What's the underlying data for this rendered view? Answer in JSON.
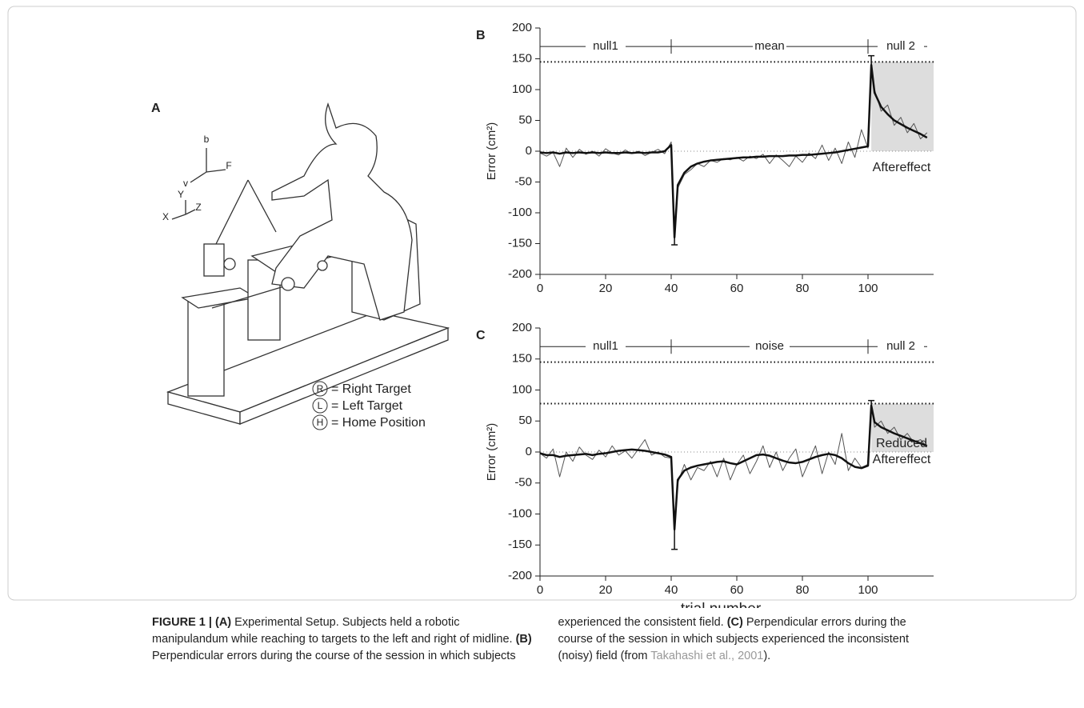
{
  "chart_data": [
    {
      "type": "line",
      "panel": "B",
      "ylabel": "Error (cm²)",
      "xlim": [
        0,
        120
      ],
      "xticks": [
        0,
        20,
        40,
        60,
        80,
        100
      ],
      "ylim": [
        -200,
        200
      ],
      "yticks": [
        -200,
        -150,
        -100,
        -50,
        0,
        50,
        100,
        150,
        200
      ],
      "x": [
        0,
        2,
        4,
        6,
        8,
        10,
        12,
        14,
        16,
        18,
        20,
        22,
        24,
        26,
        28,
        30,
        32,
        34,
        36,
        38,
        40,
        41,
        42,
        44,
        46,
        48,
        50,
        52,
        54,
        56,
        58,
        60,
        62,
        64,
        66,
        68,
        70,
        72,
        74,
        76,
        78,
        80,
        82,
        84,
        86,
        88,
        90,
        92,
        94,
        96,
        98,
        100,
        101,
        102,
        104,
        106,
        108,
        110,
        112,
        114,
        116,
        118
      ],
      "series": [
        {
          "color": "#555555",
          "line_width": 1,
          "values": [
            -3,
            -8,
            -2,
            -25,
            5,
            -10,
            3,
            -5,
            0,
            -8,
            4,
            -3,
            -6,
            2,
            -4,
            0,
            -7,
            -2,
            3,
            -4,
            15,
            -145,
            -60,
            -38,
            -30,
            -20,
            -25,
            -15,
            -18,
            -12,
            -14,
            -10,
            -16,
            -8,
            -12,
            -5,
            -20,
            -6,
            -15,
            -25,
            -8,
            -18,
            -3,
            -12,
            10,
            -15,
            5,
            -20,
            15,
            -10,
            35,
            5,
            145,
            100,
            65,
            75,
            42,
            55,
            30,
            45,
            20,
            30
          ]
        },
        {
          "color": "#111111",
          "line_width": 2.5,
          "values": [
            -2,
            -3,
            -2,
            -4,
            -2,
            -3,
            -2,
            -3,
            -2,
            -3,
            -2,
            -3,
            -3,
            -2,
            -3,
            -2,
            -3,
            -2,
            -2,
            0,
            10,
            -140,
            -55,
            -35,
            -25,
            -20,
            -17,
            -15,
            -14,
            -13,
            -12,
            -11,
            -10,
            -10,
            -9,
            -9,
            -8,
            -8,
            -8,
            -7,
            -7,
            -6,
            -6,
            -5,
            -4,
            -3,
            -2,
            0,
            2,
            4,
            6,
            8,
            140,
            95,
            72,
            60,
            50,
            44,
            38,
            33,
            28,
            22
          ]
        }
      ],
      "segment_y": 170,
      "segments": [
        {
          "label": "null1",
          "from": 0,
          "to": 40
        },
        {
          "label": "mean",
          "from": 40,
          "to": 100
        },
        {
          "label": "null 2",
          "from": 100,
          "to": 120
        }
      ],
      "reference_lines": [
        {
          "y": 145,
          "style": "dotted"
        },
        {
          "y": 0,
          "style": "fine"
        }
      ],
      "shade": {
        "x": [
          101,
          120
        ],
        "y": [
          0,
          145
        ]
      },
      "error_bars": [
        {
          "x": 41,
          "y": [
            -140,
            -152
          ]
        },
        {
          "x": 101,
          "y": [
            140,
            155
          ]
        }
      ],
      "annotation": [
        "Aftereffect"
      ]
    },
    {
      "type": "line",
      "panel": "C",
      "ylabel": "Error (cm²)",
      "xlabel": "trial number",
      "xlim": [
        0,
        120
      ],
      "xticks": [
        0,
        20,
        40,
        60,
        80,
        100
      ],
      "ylim": [
        -200,
        200
      ],
      "yticks": [
        -200,
        -150,
        -100,
        -50,
        0,
        50,
        100,
        150,
        200
      ],
      "x": [
        0,
        2,
        4,
        6,
        8,
        10,
        12,
        14,
        16,
        18,
        20,
        22,
        24,
        26,
        28,
        30,
        32,
        34,
        36,
        38,
        40,
        41,
        42,
        44,
        46,
        48,
        50,
        52,
        54,
        56,
        58,
        60,
        62,
        64,
        66,
        68,
        70,
        72,
        74,
        76,
        78,
        80,
        82,
        84,
        86,
        88,
        90,
        92,
        94,
        96,
        98,
        100,
        101,
        102,
        104,
        106,
        108,
        110,
        112,
        114,
        116,
        118
      ],
      "series": [
        {
          "color": "#555555",
          "line_width": 1,
          "values": [
            -2,
            -10,
            5,
            -40,
            0,
            -15,
            8,
            -5,
            -12,
            3,
            -8,
            10,
            -5,
            2,
            -10,
            5,
            20,
            -5,
            0,
            -8,
            -10,
            -130,
            -50,
            -20,
            -45,
            -25,
            -30,
            -15,
            -40,
            -10,
            -45,
            -20,
            -5,
            -35,
            -15,
            10,
            -25,
            0,
            -30,
            -10,
            5,
            -40,
            -15,
            10,
            -35,
            0,
            -20,
            30,
            -30,
            -10,
            -25,
            -20,
            78,
            40,
            50,
            30,
            40,
            20,
            30,
            15,
            20,
            8
          ]
        },
        {
          "color": "#111111",
          "line_width": 2.5,
          "values": [
            -2,
            -5,
            -5,
            -8,
            -6,
            -5,
            -4,
            -3,
            -5,
            -3,
            -2,
            0,
            2,
            3,
            4,
            3,
            2,
            0,
            -2,
            -4,
            -8,
            -125,
            -45,
            -30,
            -25,
            -22,
            -20,
            -18,
            -16,
            -15,
            -18,
            -20,
            -15,
            -10,
            -5,
            -4,
            -6,
            -10,
            -14,
            -17,
            -18,
            -16,
            -12,
            -8,
            -5,
            -3,
            -5,
            -10,
            -18,
            -24,
            -26,
            -22,
            75,
            48,
            40,
            35,
            30,
            26,
            22,
            18,
            14,
            10
          ]
        }
      ],
      "segment_y": 170,
      "segments": [
        {
          "label": "null1",
          "from": 0,
          "to": 40
        },
        {
          "label": "noise",
          "from": 40,
          "to": 100
        },
        {
          "label": "null 2",
          "from": 100,
          "to": 120
        }
      ],
      "reference_lines": [
        {
          "y": 145,
          "style": "dotted"
        },
        {
          "y": 78,
          "style": "dotted"
        },
        {
          "y": 0,
          "style": "fine"
        }
      ],
      "shade": {
        "x": [
          101,
          120
        ],
        "y": [
          0,
          78
        ]
      },
      "error_bars": [
        {
          "x": 41,
          "y": [
            -125,
            -157
          ]
        },
        {
          "x": 101,
          "y": [
            75,
            83
          ]
        }
      ],
      "annotation": [
        "Reduced",
        "Aftereffect"
      ]
    }
  ],
  "panel_a": {
    "letter": "A",
    "axis_letters": [
      "b",
      "v",
      "F",
      "X",
      "Y",
      "Z"
    ],
    "legend": [
      {
        "symbol": "R",
        "label": "= Right Target"
      },
      {
        "symbol": "L",
        "label": "= Left Target"
      },
      {
        "symbol": "H",
        "label": "= Home Position"
      }
    ]
  },
  "caption": {
    "runs": [
      {
        "text": "FIGURE 1 | (A)",
        "bold": true
      },
      {
        "text": " Experimental Setup. Subjects held a robotic manipulandum while reaching to targets to the left and right of midline. "
      },
      {
        "text": "(B)",
        "bold": true
      },
      {
        "text": " Perpendicular errors during the course of the session in which subjects experienced the consistent field. "
      },
      {
        "text": "(C)",
        "bold": true
      },
      {
        "text": " Perpendicular errors during the course of the session in which subjects experienced the inconsistent (noisy) field (from "
      },
      {
        "text": "Takahashi et al., 2001",
        "link": true
      },
      {
        "text": ")."
      }
    ]
  }
}
